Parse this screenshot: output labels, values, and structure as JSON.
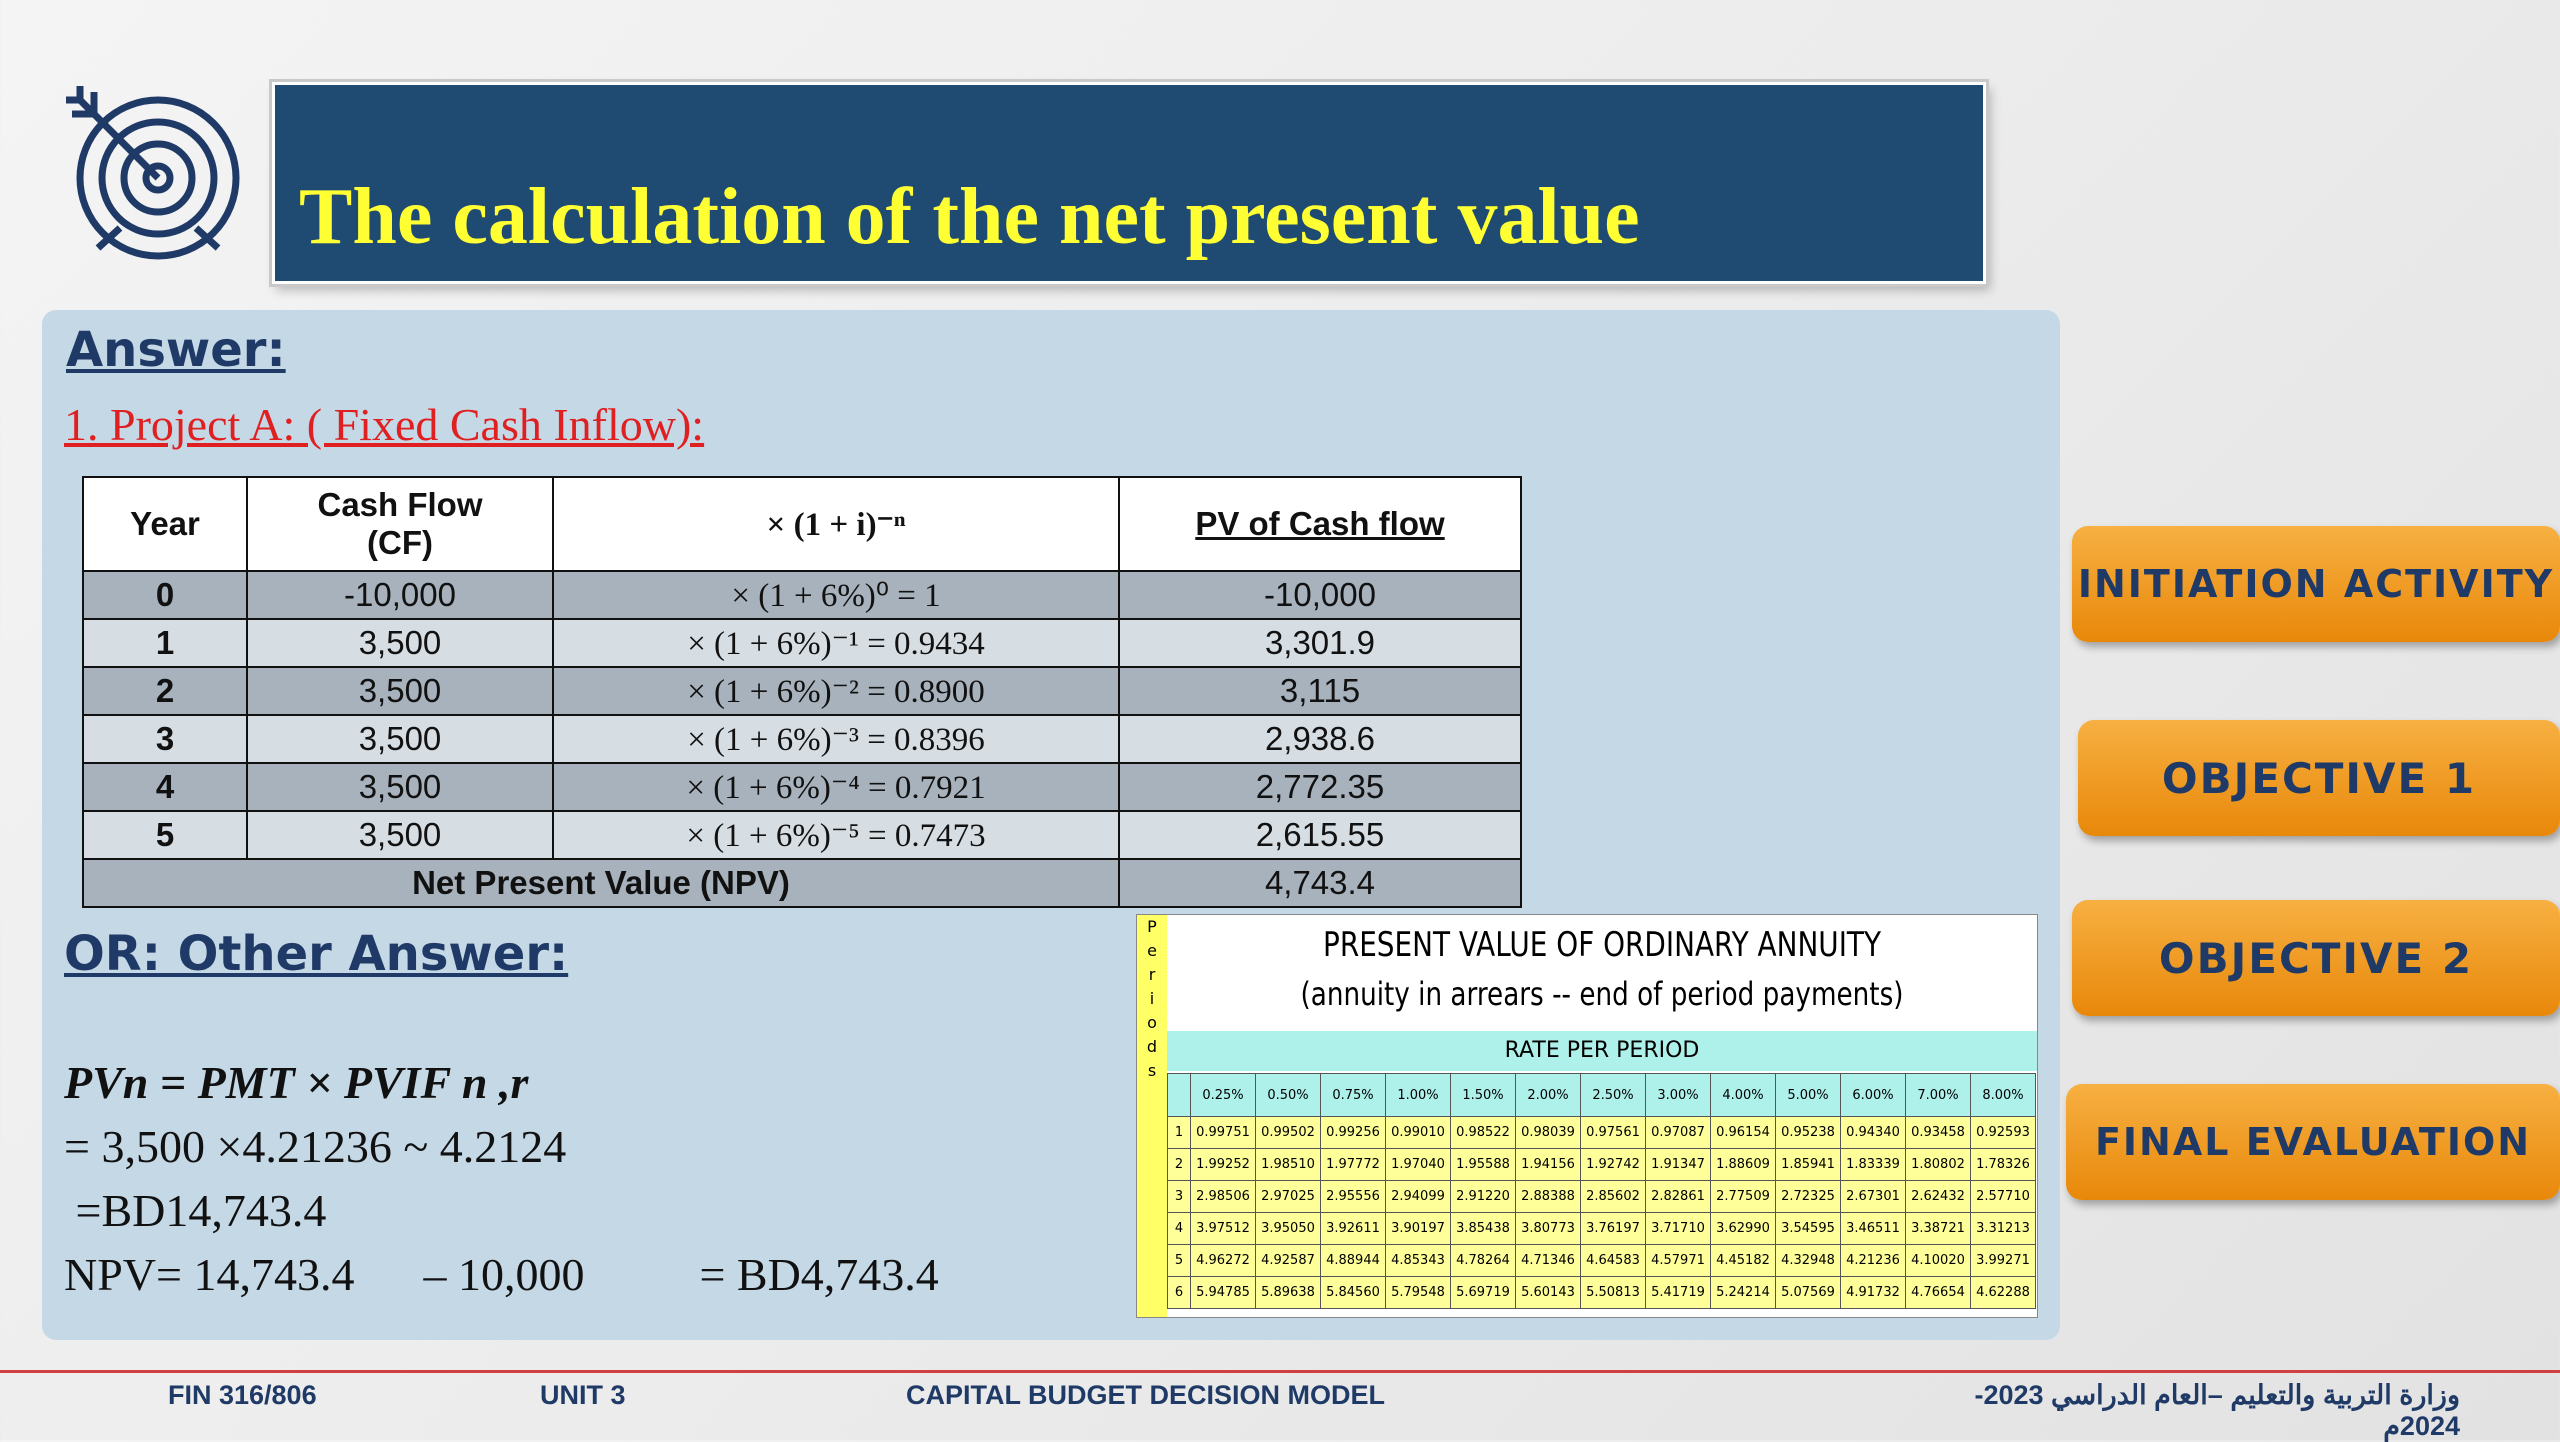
{
  "title": "The calculation of the net present value",
  "answer_heading": "Answer:",
  "project_a_heading": "1. Project A: ( Fixed Cash Inflow):",
  "npv_table": {
    "headers": {
      "year": "Year",
      "cash_flow_line1": "Cash Flow",
      "cash_flow_line2": "(CF)",
      "factor": "× (1 + i)⁻ⁿ",
      "pv": "PV of Cash flow"
    },
    "rows": [
      {
        "year": "0",
        "cf": "-10,000",
        "factor": "× (1 + 6%)⁰ = 1",
        "pv": "-10,000"
      },
      {
        "year": "1",
        "cf": "3,500",
        "factor": "× (1 + 6%)⁻¹ = 0.9434",
        "pv": "3,301.9"
      },
      {
        "year": "2",
        "cf": "3,500",
        "factor": "× (1 + 6%)⁻² = 0.8900",
        "pv": "3,115"
      },
      {
        "year": "3",
        "cf": "3,500",
        "factor": "× (1 + 6%)⁻³ = 0.8396",
        "pv": "2,938.6"
      },
      {
        "year": "4",
        "cf": "3,500",
        "factor": "× (1 + 6%)⁻⁴ = 0.7921",
        "pv": "2,772.35"
      },
      {
        "year": "5",
        "cf": "3,500",
        "factor": "× (1 + 6%)⁻⁵ = 0.7473",
        "pv": "2,615.55"
      }
    ],
    "total_label": "Net Present Value (NPV)",
    "total_value": "4,743.4"
  },
  "or_heading": "OR: Other Answer:",
  "formula_lines": [
    "PVn = PMT × PVIF n ,r",
    "= 3,500 ×4.21236 ~ 4.2124",
    " =BD14,743.4",
    "NPV= 14,743.4      – 10,000          = BD4,743.4"
  ],
  "annuity_table": {
    "side_label": [
      "P",
      "e",
      "r",
      "i",
      "o",
      "d",
      "s"
    ],
    "title1": "PRESENT VALUE OF ORDINARY ANNUITY",
    "title2": "(annuity in arrears -- end of period payments)",
    "rate_label": "RATE PER PERIOD",
    "rates": [
      "0.25%",
      "0.50%",
      "0.75%",
      "1.00%",
      "1.50%",
      "2.00%",
      "2.50%",
      "3.00%",
      "4.00%",
      "5.00%",
      "6.00%",
      "7.00%",
      "8.00%"
    ],
    "rows": [
      {
        "p": "1",
        "v": [
          "0.99751",
          "0.99502",
          "0.99256",
          "0.99010",
          "0.98522",
          "0.98039",
          "0.97561",
          "0.97087",
          "0.96154",
          "0.95238",
          "0.94340",
          "0.93458",
          "0.92593"
        ]
      },
      {
        "p": "2",
        "v": [
          "1.99252",
          "1.98510",
          "1.97772",
          "1.97040",
          "1.95588",
          "1.94156",
          "1.92742",
          "1.91347",
          "1.88609",
          "1.85941",
          "1.83339",
          "1.80802",
          "1.78326"
        ]
      },
      {
        "p": "3",
        "v": [
          "2.98506",
          "2.97025",
          "2.95556",
          "2.94099",
          "2.91220",
          "2.88388",
          "2.85602",
          "2.82861",
          "2.77509",
          "2.72325",
          "2.67301",
          "2.62432",
          "2.57710"
        ]
      },
      {
        "p": "4",
        "v": [
          "3.97512",
          "3.95050",
          "3.92611",
          "3.90197",
          "3.85438",
          "3.80773",
          "3.76197",
          "3.71710",
          "3.62990",
          "3.54595",
          "3.46511",
          "3.38721",
          "3.31213"
        ]
      },
      {
        "p": "5",
        "v": [
          "4.96272",
          "4.92587",
          "4.88944",
          "4.85343",
          "4.78264",
          "4.71346",
          "4.64583",
          "4.57971",
          "4.45182",
          "4.32948",
          "4.21236",
          "4.10020",
          "3.99271"
        ]
      },
      {
        "p": "6",
        "v": [
          "5.94785",
          "5.89638",
          "5.84560",
          "5.79548",
          "5.69719",
          "5.60143",
          "5.50813",
          "5.41719",
          "5.24214",
          "5.07569",
          "4.91732",
          "4.76654",
          "4.62288"
        ]
      }
    ]
  },
  "nav": {
    "initiation": "INITIATION ACTIVITY",
    "objective1": "OBJECTIVE 1",
    "objective2": "OBJECTIVE 2",
    "final": "FINAL EVALUATION"
  },
  "footer": {
    "course": "FIN 316/806",
    "unit": "UNIT 3",
    "topic": "CAPITAL BUDGET DECISION MODEL",
    "ministry": "وزارة التربية والتعليم –العام الدراسي 2023-2024م"
  },
  "colors": {
    "title_bg": "#1f4a72",
    "title_text": "#ffff33",
    "nav_orange": "#f0a020",
    "heading_blue": "#1f3a66",
    "project_red": "#e02020"
  }
}
